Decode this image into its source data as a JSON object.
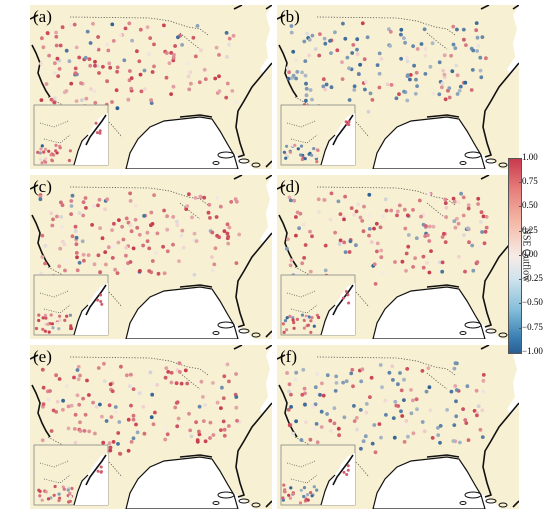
{
  "panels": [
    {
      "label": "(a)",
      "pattern": "mostly-positive"
    },
    {
      "label": "(b)",
      "pattern": "mostly-negative"
    },
    {
      "label": "(c)",
      "pattern": "mostly-positive"
    },
    {
      "label": "(d)",
      "pattern": "mostly-positive"
    },
    {
      "label": "(e)",
      "pattern": "mostly-positive"
    },
    {
      "label": "(f)",
      "pattern": "mixed"
    }
  ],
  "colorbar": {
    "title": "NSE Outflow",
    "ticks": [
      "1.00",
      "0.75",
      "0.50",
      "0.25",
      "0.00",
      "−0.25",
      "−0.50",
      "−0.75",
      "−1.00"
    ],
    "range": [
      -1.0,
      1.0
    ],
    "colors": {
      "high": "#c83a4e",
      "mid": "#f7ece6",
      "low": "#2b5f94"
    }
  },
  "map_colors": {
    "land": "#f7f0d2",
    "water": "#ffffff",
    "coast": "#111111",
    "border": "#555555"
  }
}
